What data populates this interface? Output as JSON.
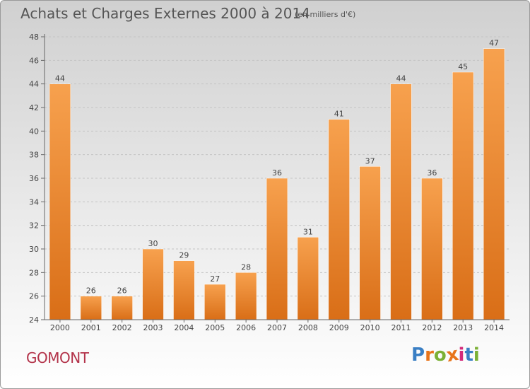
{
  "header": {
    "title": "Achats et Charges Externes 2000 à 2014",
    "unit": "(en milliers d'€)"
  },
  "footer": {
    "commune": "GOMONT",
    "logo_text": "Proxiti"
  },
  "colors": {
    "bar_light": "#f7a14e",
    "bar_dark": "#d96e17",
    "commune": "#b3334a",
    "logo": [
      "#3a7fc4",
      "#e8741a",
      "#7bb035",
      "#e8741a",
      "#d42a7a",
      "#3a7fc4",
      "#7bb035"
    ]
  },
  "chart_data": {
    "type": "bar",
    "categories": [
      "2000",
      "2001",
      "2002",
      "2003",
      "2004",
      "2005",
      "2006",
      "2007",
      "2008",
      "2009",
      "2010",
      "2011",
      "2012",
      "2013",
      "2014"
    ],
    "values": [
      44,
      26,
      26,
      30,
      29,
      27,
      28,
      36,
      31,
      41,
      37,
      44,
      36,
      45,
      47
    ],
    "data_labels": [
      "44",
      "26",
      "26",
      "30",
      "29",
      "27",
      "28",
      "36",
      "31",
      "41",
      "37",
      "44",
      "36",
      "45",
      "47"
    ],
    "yticks": [
      "24",
      "26",
      "28",
      "30",
      "32",
      "34",
      "36",
      "38",
      "40",
      "42",
      "44",
      "46",
      "48"
    ],
    "ylim": [
      24,
      48
    ],
    "grid": true,
    "title": "Achats et Charges Externes 2000 à 2014",
    "xlabel": "",
    "ylabel": ""
  }
}
